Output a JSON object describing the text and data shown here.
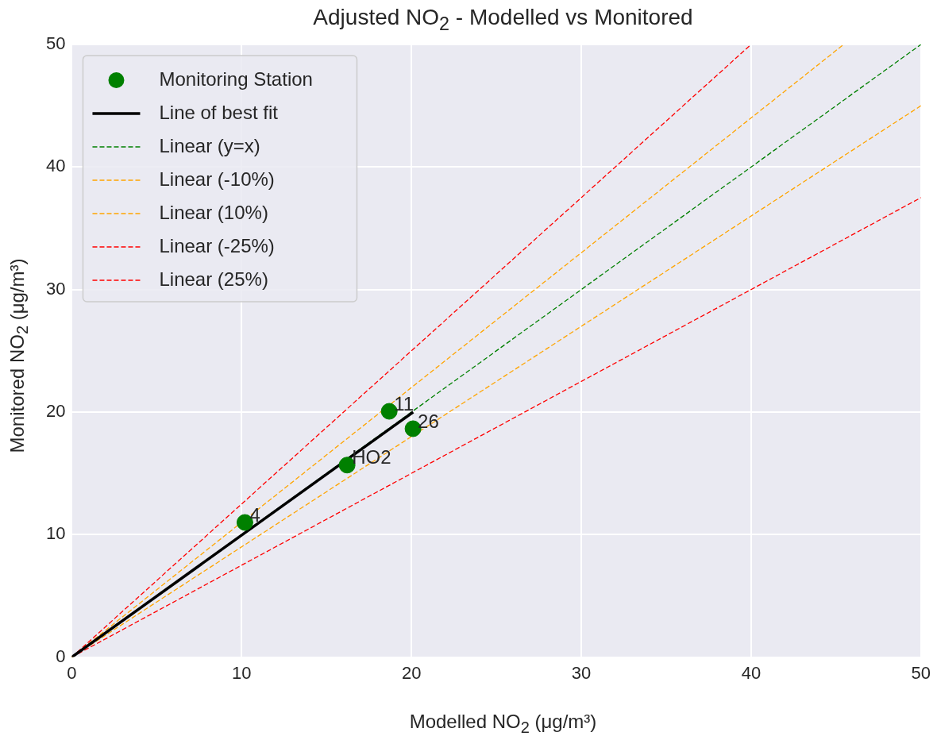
{
  "chart_data": {
    "type": "scatter",
    "title": "Adjusted NO$_{2}$ - Modelled vs Monitored",
    "xlabel": "Modelled NO$_{2}$ (μg/m³)",
    "ylabel": "Monitored NO$_{2}$ (μg/m³)",
    "xlim": [
      0,
      50
    ],
    "ylim": [
      0,
      50
    ],
    "xticks": [
      0,
      10,
      20,
      30,
      40,
      50
    ],
    "yticks": [
      0,
      10,
      20,
      30,
      40,
      50
    ],
    "grid": true,
    "legend": "top left",
    "series": [
      {
        "name": "Monitoring Station",
        "type": "scatter",
        "color": "#008000",
        "marker": "circle",
        "x": [
          10.19,
          18.69,
          20.09,
          16.21
        ],
        "values": [
          10.99,
          20.06,
          18.64,
          15.67
        ]
      },
      {
        "name": "Line of best fit",
        "type": "line",
        "color": "#000000",
        "line_style": "solid",
        "marker": "none",
        "x": [
          0,
          20.1
        ],
        "values": [
          0,
          20.0
        ]
      },
      {
        "name": "Linear (y=x)",
        "type": "line",
        "color": "#008000",
        "line_style": "dashed",
        "marker": "none",
        "x": [
          0,
          50
        ],
        "values": [
          0,
          50
        ]
      },
      {
        "name": "Linear (-10%)",
        "type": "line",
        "color": "#ffa500",
        "line_style": "dashed",
        "marker": "none",
        "x": [
          0,
          50
        ],
        "values": [
          0,
          45
        ]
      },
      {
        "name": "Linear (10%)",
        "type": "line",
        "color": "#ffa500",
        "line_style": "dashed",
        "marker": "none",
        "x": [
          0,
          45.45
        ],
        "values": [
          0,
          50
        ]
      },
      {
        "name": "Linear (-25%)",
        "type": "line",
        "color": "#ff0000",
        "line_style": "dashed",
        "marker": "none",
        "x": [
          0,
          50
        ],
        "values": [
          0,
          37.5
        ]
      },
      {
        "name": "Linear (25%)",
        "type": "line",
        "color": "#ff0000",
        "line_style": "dashed",
        "marker": "none",
        "x": [
          0,
          40
        ],
        "values": [
          0,
          50
        ]
      }
    ],
    "annotations": [
      {
        "text": "4",
        "x": 10.19,
        "y": 10.99
      },
      {
        "text": "11",
        "x": 18.69,
        "y": 20.06
      },
      {
        "text": "26",
        "x": 20.09,
        "y": 18.64
      },
      {
        "text": "HO2",
        "x": 16.21,
        "y": 15.67
      }
    ]
  }
}
